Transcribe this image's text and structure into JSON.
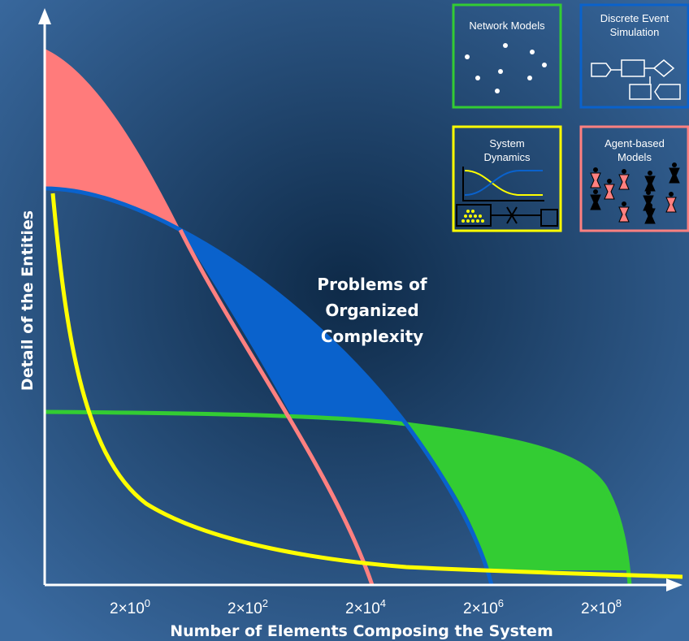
{
  "axes": {
    "x_label": "Number of Elements Composing the System",
    "y_label": "Detail of the Entities",
    "x_ticks": [
      {
        "base": "2×10",
        "exponent": "0"
      },
      {
        "base": "2×10",
        "exponent": "2"
      },
      {
        "base": "2×10",
        "exponent": "4"
      },
      {
        "base": "2×10",
        "exponent": "6"
      },
      {
        "base": "2×10",
        "exponent": "8"
      }
    ]
  },
  "annotation": {
    "lines": [
      "Problems of",
      "Organized",
      "Complexity"
    ]
  },
  "boxes": [
    {
      "lines": [
        "Network Models"
      ]
    },
    {
      "lines": [
        "Discrete Event",
        "Simulation"
      ]
    },
    {
      "lines": [
        "System",
        "Dynamics"
      ]
    },
    {
      "lines": [
        "Agent-based",
        "Models"
      ]
    }
  ]
}
